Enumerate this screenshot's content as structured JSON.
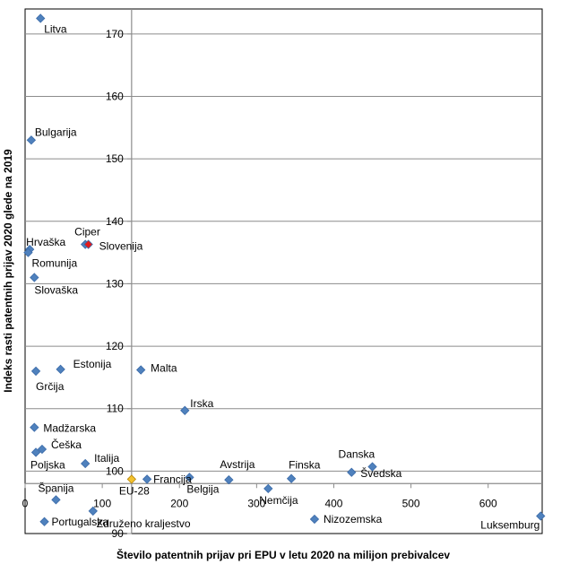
{
  "chart_data": {
    "type": "scatter",
    "xlabel": "Število patentnih prijav pri EPU v letu 2020 na milijon prebivalcev",
    "ylabel": "Indeks rasti patentnih prijav 2020 glede na 2019",
    "xlim": [
      0,
      670
    ],
    "ylim": [
      90,
      174
    ],
    "axes_cross": {
      "x": 138,
      "y": 98
    },
    "x_ticks": [
      0,
      100,
      200,
      300,
      400,
      500,
      600
    ],
    "y_ticks": [
      90,
      100,
      110,
      120,
      130,
      140,
      150,
      160,
      170
    ],
    "grid": "horizontal",
    "colors": {
      "default": "#4F81BD",
      "highlight": "#E31A1C",
      "eu": "#F2C12E"
    },
    "points": [
      {
        "label": "Litva",
        "x": 20,
        "y": 172.5,
        "color": "default"
      },
      {
        "label": "Bulgarija",
        "x": 8,
        "y": 153,
        "color": "default"
      },
      {
        "label": "Hrvaška",
        "x": 6,
        "y": 135.5,
        "color": "default"
      },
      {
        "label": "Romunija",
        "x": 4,
        "y": 135,
        "color": "default"
      },
      {
        "label": "Ciper",
        "x": 78,
        "y": 136.3,
        "color": "default"
      },
      {
        "label": "Slovenija",
        "x": 82,
        "y": 136.3,
        "color": "highlight"
      },
      {
        "label": "Slovaška",
        "x": 12,
        "y": 131,
        "color": "default"
      },
      {
        "label": "Estonija",
        "x": 46,
        "y": 116.3,
        "color": "default"
      },
      {
        "label": "Grčija",
        "x": 14,
        "y": 116,
        "color": "default"
      },
      {
        "label": "Malta",
        "x": 150,
        "y": 116.2,
        "color": "default"
      },
      {
        "label": "Irska",
        "x": 207,
        "y": 109.7,
        "color": "default"
      },
      {
        "label": "Madžarska",
        "x": 12,
        "y": 107,
        "color": "default"
      },
      {
        "label": "Češka",
        "x": 22,
        "y": 103.5,
        "color": "default"
      },
      {
        "label": "Poljska",
        "x": 14,
        "y": 103,
        "color": "default"
      },
      {
        "label": "Italija",
        "x": 78,
        "y": 101.2,
        "color": "default"
      },
      {
        "label": "Danska",
        "x": 450,
        "y": 100.7,
        "color": "default"
      },
      {
        "label": "Švedska",
        "x": 423,
        "y": 99.8,
        "color": "default"
      },
      {
        "label": "Avstrija",
        "x": 264,
        "y": 98.6,
        "color": "default"
      },
      {
        "label": "Finska",
        "x": 345,
        "y": 98.8,
        "color": "default"
      },
      {
        "label": "Francija",
        "x": 158,
        "y": 98.7,
        "color": "default"
      },
      {
        "label": "Belgija",
        "x": 213,
        "y": 99,
        "color": "default"
      },
      {
        "label": "EU-28",
        "x": 138,
        "y": 98.7,
        "color": "eu"
      },
      {
        "label": "Nemčija",
        "x": 315,
        "y": 97.2,
        "color": "default"
      },
      {
        "label": "Španija",
        "x": 40,
        "y": 95.4,
        "color": "default"
      },
      {
        "label": "Združeno kraljestvo",
        "x": 88,
        "y": 93.6,
        "color": "default"
      },
      {
        "label": "Portugalska",
        "x": 25,
        "y": 91.9,
        "color": "default"
      },
      {
        "label": "Nizozemska",
        "x": 375,
        "y": 92.3,
        "color": "default"
      },
      {
        "label": "Luksemburg",
        "x": 668,
        "y": 92.8,
        "color": "default"
      }
    ]
  }
}
